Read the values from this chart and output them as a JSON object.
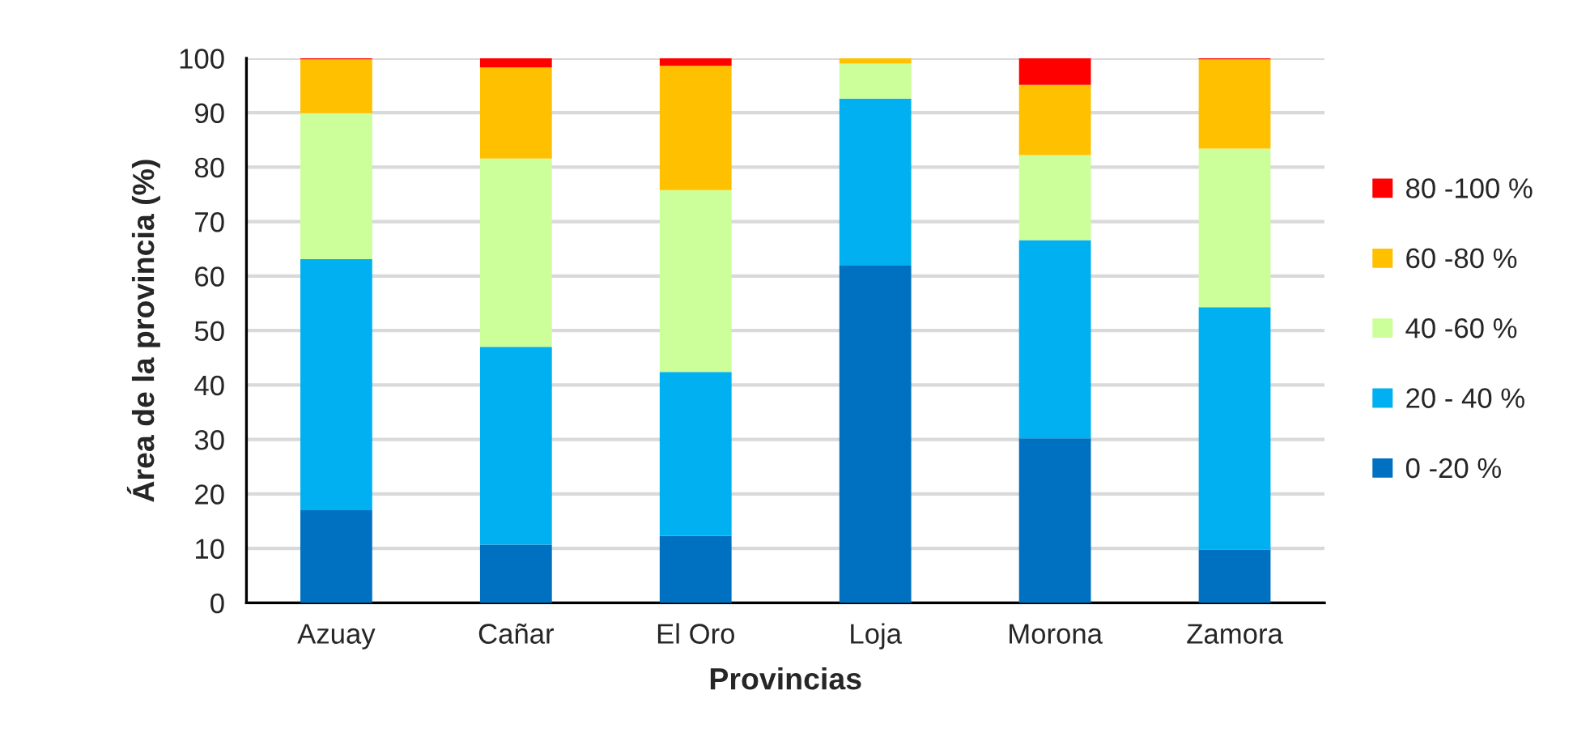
{
  "chart_data": {
    "type": "bar",
    "stacked": true,
    "categories": [
      "Azuay",
      "Cañar",
      "El Oro",
      "Loja",
      "Morona",
      "Zamora"
    ],
    "series": [
      {
        "name": "0 -20 %",
        "color": "#0070c0",
        "values": [
          17.0,
          10.7,
          12.3,
          61.9,
          30.2,
          9.8
        ]
      },
      {
        "name": "20 - 40 %",
        "color": "#00b0f0",
        "values": [
          46.1,
          36.3,
          30.1,
          30.7,
          36.4,
          44.5
        ]
      },
      {
        "name": "40 -60 %",
        "color": "#ccff99",
        "values": [
          26.8,
          34.6,
          33.4,
          6.4,
          15.6,
          29.1
        ]
      },
      {
        "name": "60 -80 %",
        "color": "#ffc000",
        "values": [
          9.9,
          16.7,
          22.8,
          1.0,
          12.9,
          16.4
        ]
      },
      {
        "name": "80 -100 %",
        "color": "#ff0000",
        "values": [
          0.2,
          1.7,
          1.4,
          0,
          4.9,
          0.2
        ]
      }
    ],
    "xlabel": "Provincias",
    "ylabel": "Área de la provincia (%)",
    "ylim": [
      0,
      100
    ],
    "yticks": [
      0,
      10,
      20,
      30,
      40,
      50,
      60,
      70,
      80,
      90,
      100
    ],
    "grid": "y",
    "legend": "right"
  }
}
